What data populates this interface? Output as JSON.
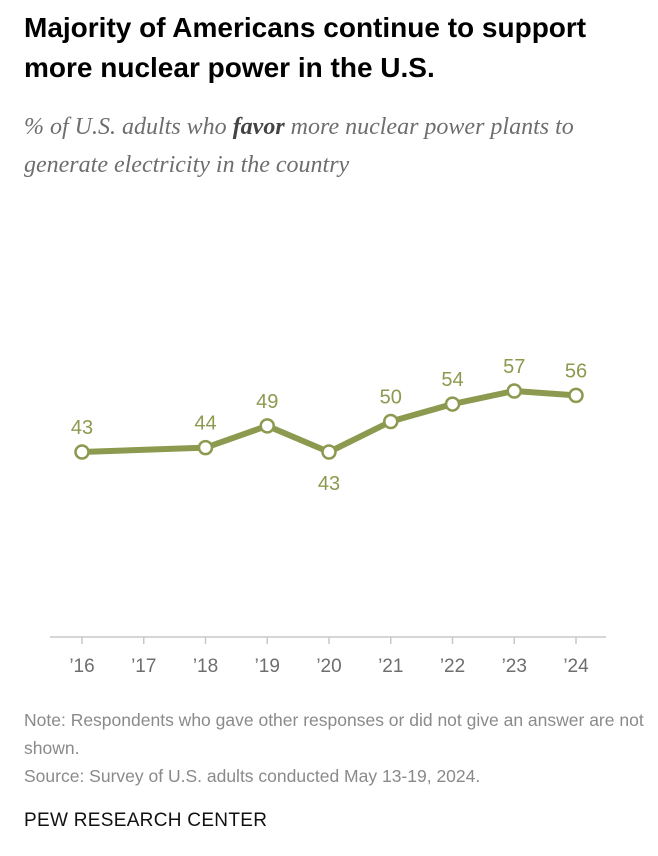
{
  "header": {
    "title": "Majority of Americans continue to support more nuclear power in the U.S.",
    "subtitle_pre": "% of U.S. adults who ",
    "subtitle_emph": "favor",
    "subtitle_post": " more nuclear power plants to generate electricity in the country"
  },
  "chart_data": {
    "type": "line",
    "x": [
      2016,
      2018,
      2019,
      2020,
      2021,
      2022,
      2023,
      2024
    ],
    "tick_years": [
      2016,
      2017,
      2018,
      2019,
      2020,
      2021,
      2022,
      2023,
      2024
    ],
    "tick_labels": [
      "’16",
      "’17",
      "’18",
      "’19",
      "’20",
      "’21",
      "’22",
      "’23",
      "’24"
    ],
    "series": [
      {
        "values": [
          43,
          44,
          49,
          43,
          50,
          54,
          57,
          56
        ],
        "label_positions": [
          "above",
          "above",
          "above",
          "below",
          "above",
          "above",
          "above",
          "above"
        ],
        "color": "#8c9a4f"
      }
    ],
    "ylim": [
      0,
      100
    ],
    "grid": false,
    "legend": "none",
    "xlabel": "",
    "ylabel": "",
    "title": "Majority of Americans continue to support more nuclear power in the U.S.",
    "label_color": "#8c9a4f",
    "axis_color": "#c8c8c8",
    "tick_label_color": "#6e6e6e"
  },
  "footer": {
    "note": "Note: Respondents who gave other responses or did not give an answer are not shown.",
    "source": "Source: Survey of U.S. adults conducted May 13-19, 2024.",
    "brand": "PEW RESEARCH CENTER"
  }
}
